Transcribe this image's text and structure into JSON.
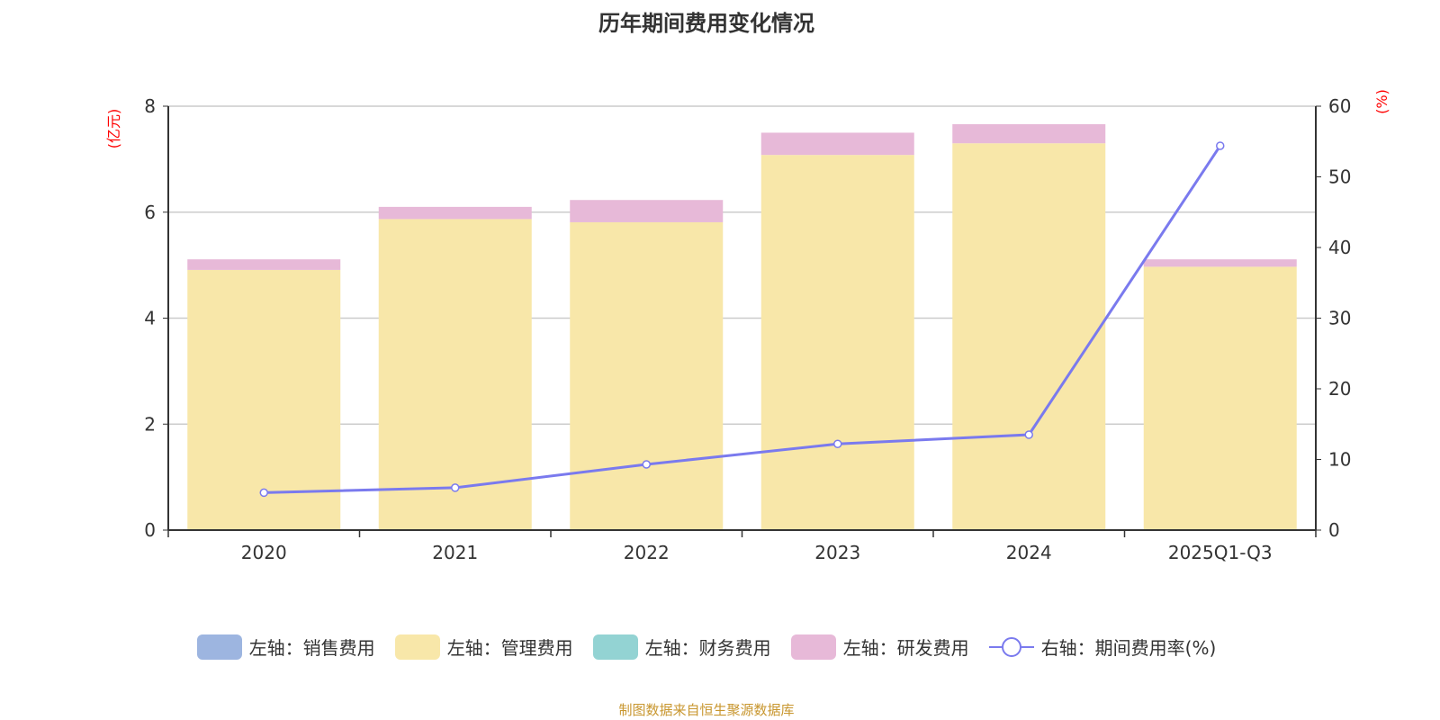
{
  "chart_data": {
    "type": "bar",
    "title": "历年期间费用变化情况",
    "categories": [
      "2020",
      "2021",
      "2022",
      "2023",
      "2024",
      "2025Q1-Q3"
    ],
    "left_axis": {
      "label": "(亿元)",
      "ylim": [
        0,
        8
      ],
      "ticks": [
        0,
        2,
        4,
        6,
        8
      ]
    },
    "right_axis": {
      "label": "(%)",
      "ylim": [
        0,
        60
      ],
      "ticks": [
        0,
        10,
        20,
        30,
        40,
        50,
        60
      ]
    },
    "series": [
      {
        "name": "左轴：销售费用",
        "type": "bar",
        "stack": true,
        "color": "#9db5e0",
        "values": [
          0,
          0,
          0,
          0,
          0,
          0
        ]
      },
      {
        "name": "左轴：管理费用",
        "type": "bar",
        "stack": true,
        "color": "#f8e7a9",
        "values": [
          4.91,
          5.87,
          5.81,
          7.08,
          7.3,
          4.97
        ]
      },
      {
        "name": "左轴：财务费用",
        "type": "bar",
        "stack": true,
        "color": "#93d3d3",
        "values": [
          0,
          0,
          0,
          0,
          0,
          0
        ]
      },
      {
        "name": "左轴：研发费用",
        "type": "bar",
        "stack": true,
        "color": "#e7b9d8",
        "values": [
          0.2,
          0.23,
          0.42,
          0.42,
          0.36,
          0.14
        ]
      },
      {
        "name": "右轴：期间费用率(%)",
        "type": "line",
        "color": "#7a7aee",
        "values": [
          5.3,
          6.0,
          9.3,
          12.2,
          13.5,
          54.4
        ]
      }
    ],
    "grid": true,
    "legend_position": "bottom"
  },
  "source": "制图数据来自恒生聚源数据库"
}
